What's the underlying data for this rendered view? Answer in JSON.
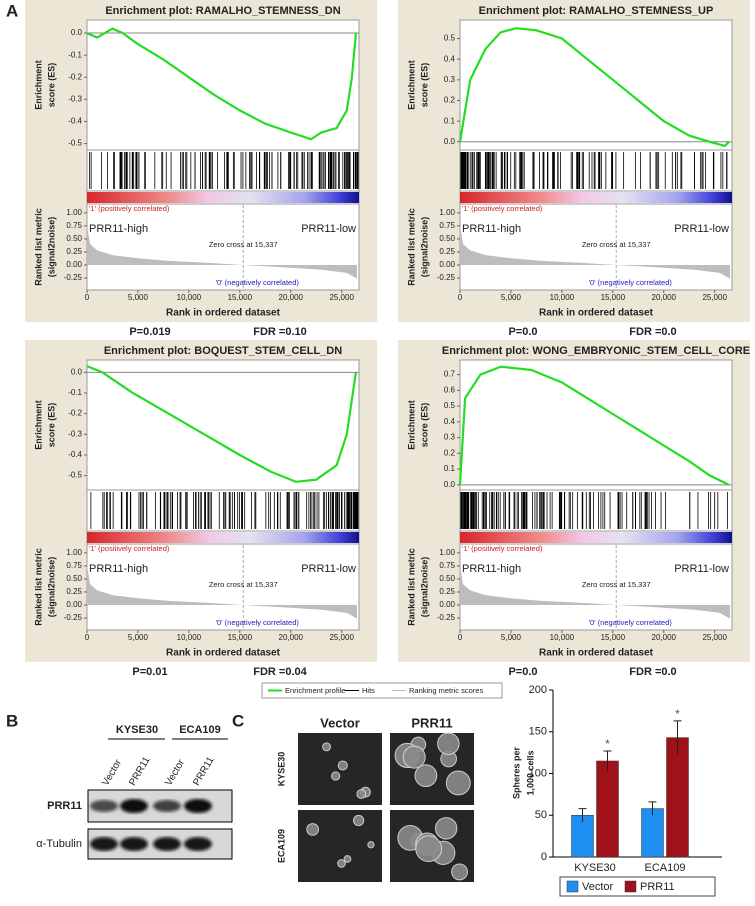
{
  "panel_labels": [
    "A",
    "B",
    "C"
  ],
  "gsea_labels": {
    "es_label": [
      "Enrichment",
      "score (ES)"
    ],
    "metric_label": [
      "Ranked list metric",
      "(signal2noise)"
    ],
    "pos": "'1' (positively correlated)",
    "neg": "'0' (negatively correlated)",
    "high": "PRR11-high",
    "low": "PRR11-low",
    "zero_cross": "Zero cross at 15,337",
    "zero_cross_rank": 15337,
    "xlabel": "Rank in ordered dataset",
    "xlim": [
      0,
      26700
    ],
    "xticks": [
      0,
      {
        "value": 5000,
        "label": "5,000"
      },
      {
        "value": 10000,
        "label": "10,000"
      },
      {
        "value": 15000,
        "label": "15,000"
      },
      {
        "value": 20000,
        "label": "20,000"
      },
      {
        "value": 25000,
        "label": "25,000"
      }
    ],
    "mlim": [
      -0.44,
      1.15
    ],
    "metric_yticks": [
      {
        "value": 1,
        "label": "1.00"
      },
      0.75,
      {
        "value": 0.5,
        "label": "0.50"
      },
      0.25,
      {
        "value": 0,
        "label": "0.00"
      },
      -0.25
    ]
  },
  "ranked_metric": {
    "x": [
      0,
      300,
      1000,
      2500,
      5000,
      8000,
      12000,
      15337,
      19000,
      23000,
      25500,
      26500
    ],
    "values": [
      0.75,
      0.4,
      0.28,
      0.19,
      0.13,
      0.08,
      0.04,
      0,
      -0.04,
      -0.09,
      -0.15,
      -0.26
    ]
  },
  "gsea_legend": [
    "Enrichment profile",
    "Hits",
    "Ranking metric scores"
  ],
  "chart_data": [
    {
      "type": "gsea",
      "title": "Enrichment plot: RAMALHO_STEMNESS_DN",
      "p_label": "P=0.019",
      "fdr_label": "FDR =0.10",
      "ylim": [
        -0.52,
        0.05
      ],
      "yticks": [
        {
          "value": 0,
          "label": "0.0"
        },
        -0.1,
        -0.2,
        -0.3,
        -0.4,
        -0.5
      ],
      "x": [
        0,
        1000,
        2500,
        3500,
        5000,
        7500,
        10000,
        12500,
        15000,
        17500,
        20000,
        22000,
        23000,
        24500,
        25500,
        26000,
        26400
      ],
      "series": [
        {
          "name": "Enrichment profile",
          "color": "#22dd22",
          "values": [
            0,
            -0.02,
            0.02,
            0,
            -0.05,
            -0.12,
            -0.2,
            -0.28,
            -0.35,
            -0.41,
            -0.45,
            -0.48,
            -0.45,
            -0.43,
            -0.35,
            -0.2,
            0
          ]
        }
      ]
    },
    {
      "type": "gsea",
      "title": "Enrichment plot: RAMALHO_STEMNESS_UP",
      "p_label": "P=0.0",
      "fdr_label": "FDR =0.0",
      "ylim": [
        -0.03,
        0.58
      ],
      "yticks": [
        {
          "value": 0,
          "label": "0.0"
        },
        0.1,
        0.2,
        0.3,
        0.4,
        0.5
      ],
      "x": [
        0,
        1000,
        2500,
        4000,
        5500,
        7500,
        10000,
        12500,
        15000,
        17500,
        20000,
        22500,
        24500,
        26000,
        26400
      ],
      "series": [
        {
          "name": "Enrichment profile",
          "color": "#22dd22",
          "values": [
            0,
            0.3,
            0.45,
            0.53,
            0.55,
            0.54,
            0.5,
            0.4,
            0.3,
            0.2,
            0.1,
            0.03,
            0,
            -0.02,
            0
          ]
        }
      ]
    },
    {
      "type": "gsea",
      "title": "Enrichment plot: BOQUEST_STEM_CELL_DN",
      "p_label": "P=0.01",
      "fdr_label": "FDR =0.04",
      "ylim": [
        -0.56,
        0.05
      ],
      "yticks": [
        {
          "value": 0,
          "label": "0.0"
        },
        -0.1,
        -0.2,
        -0.3,
        -0.4,
        -0.5
      ],
      "x": [
        0,
        1500,
        4500,
        8000,
        11500,
        15000,
        18000,
        20500,
        22500,
        24500,
        25500,
        26400
      ],
      "series": [
        {
          "name": "Enrichment profile",
          "color": "#22dd22",
          "values": [
            0.03,
            0,
            -0.1,
            -0.2,
            -0.3,
            -0.4,
            -0.48,
            -0.53,
            -0.52,
            -0.45,
            -0.3,
            0
          ]
        }
      ]
    },
    {
      "type": "gsea",
      "title": "Enrichment plot: WONG_EMBRYONIC_STEM_CELL_CORE",
      "p_label": "P=0.0",
      "fdr_label": "FDR =0.0",
      "ylim": [
        -0.02,
        0.78
      ],
      "yticks": [
        {
          "value": 0,
          "label": "0.0"
        },
        0.1,
        0.2,
        0.3,
        0.4,
        0.5,
        0.6,
        0.7
      ],
      "x": [
        0,
        500,
        2000,
        4000,
        7000,
        10000,
        12500,
        15000,
        17500,
        20000,
        22500,
        24500,
        26400
      ],
      "series": [
        {
          "name": "Enrichment profile",
          "color": "#22dd22",
          "values": [
            0,
            0.55,
            0.7,
            0.75,
            0.73,
            0.65,
            0.55,
            0.45,
            0.35,
            0.25,
            0.15,
            0.06,
            0
          ]
        }
      ]
    },
    {
      "type": "bar",
      "ylabel": [
        "Spheres per",
        "1,000 cells"
      ],
      "categories": [
        "KYSE30",
        "ECA109"
      ],
      "ylim": [
        0,
        200
      ],
      "yticks": [
        0,
        50,
        100,
        150,
        200
      ],
      "series": [
        {
          "name": "Vector",
          "color": "#1e8ff0",
          "values": [
            50,
            58
          ],
          "errors": [
            8,
            8
          ]
        },
        {
          "name": "PRR11",
          "color": "#a0121a",
          "values": [
            115,
            143
          ],
          "errors": [
            12,
            20
          ],
          "annotations": [
            "*",
            "*"
          ]
        }
      ]
    }
  ],
  "blot": {
    "cell_lines": [
      "KYSE30",
      "ECA109"
    ],
    "lanes": [
      "Vector",
      "PRR11",
      "Vector",
      "PRR11"
    ],
    "rows": [
      "PRR11",
      "α-Tubulin"
    ]
  },
  "spheres": {
    "columns": [
      "Vector",
      "PRR11"
    ],
    "rows": [
      "KYSE30",
      "ECA109"
    ]
  }
}
